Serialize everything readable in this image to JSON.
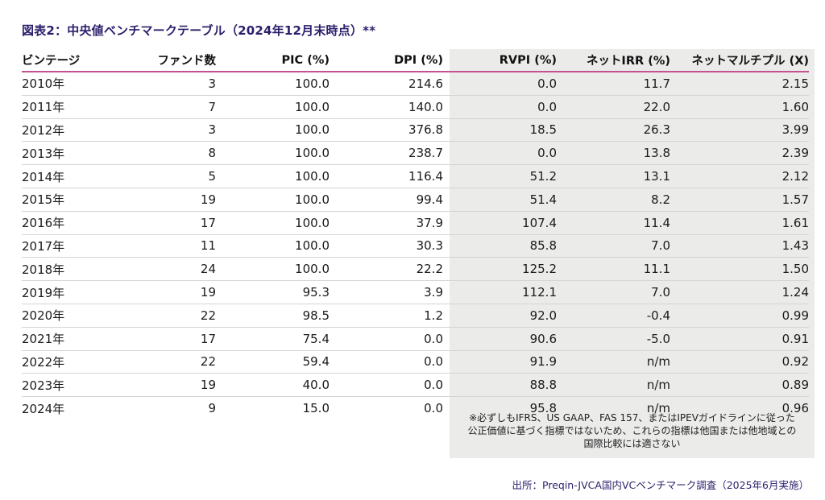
{
  "title": "図表2：中央値ベンチマークテーブル（2024年12月末時点）**",
  "table": {
    "headers": [
      "ビンテージ",
      "ファンド数",
      "PIC (%)",
      "DPI (%)",
      "RVPI (%)",
      "ネットIRR (%)",
      "ネットマルチプル (X)"
    ],
    "rows": [
      [
        "2010年",
        "3",
        "100.0",
        "214.6",
        "0.0",
        "11.7",
        "2.15"
      ],
      [
        "2011年",
        "7",
        "100.0",
        "140.0",
        "0.0",
        "22.0",
        "1.60"
      ],
      [
        "2012年",
        "3",
        "100.0",
        "376.8",
        "18.5",
        "26.3",
        "3.99"
      ],
      [
        "2013年",
        "8",
        "100.0",
        "238.7",
        "0.0",
        "13.8",
        "2.39"
      ],
      [
        "2014年",
        "5",
        "100.0",
        "116.4",
        "51.2",
        "13.1",
        "2.12"
      ],
      [
        "2015年",
        "19",
        "100.0",
        "99.4",
        "51.4",
        "8.2",
        "1.57"
      ],
      [
        "2016年",
        "17",
        "100.0",
        "37.9",
        "107.4",
        "11.4",
        "1.61"
      ],
      [
        "2017年",
        "11",
        "100.0",
        "30.3",
        "85.8",
        "7.0",
        "1.43"
      ],
      [
        "2018年",
        "24",
        "100.0",
        "22.2",
        "125.2",
        "11.1",
        "1.50"
      ],
      [
        "2019年",
        "19",
        "95.3",
        "3.9",
        "112.1",
        "7.0",
        "1.24"
      ],
      [
        "2020年",
        "22",
        "98.5",
        "1.2",
        "92.0",
        "-0.4",
        "0.99"
      ],
      [
        "2021年",
        "17",
        "75.4",
        "0.0",
        "90.6",
        "-5.0",
        "0.91"
      ],
      [
        "2022年",
        "22",
        "59.4",
        "0.0",
        "91.9",
        "n/m",
        "0.92"
      ],
      [
        "2023年",
        "19",
        "40.0",
        "0.0",
        "88.8",
        "n/m",
        "0.89"
      ],
      [
        "2024年",
        "9",
        "15.0",
        "0.0",
        "95.8",
        "n/m",
        "0.96"
      ]
    ]
  },
  "note": {
    "lines": [
      "※必ずしもIFRS、US GAAP、FAS 157、またはIPEVガイドラインに従った",
      "公正価値に基づく指標ではないため、これらの指標は他国または他地域との",
      "国際比較には適さない"
    ]
  },
  "source": "出所：Preqin-JVCA国内VCベンチマーク調査（2025年6月実施）",
  "colors": {
    "title": "#2a1f6b",
    "header_rule": "#c4528e",
    "shade": "#ebebea"
  }
}
